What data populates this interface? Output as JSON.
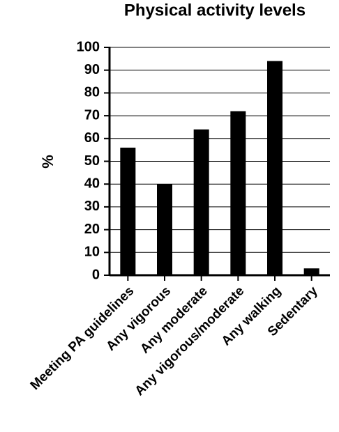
{
  "chart_data": {
    "type": "bar",
    "title": "Physical activity levels",
    "y_label": "%",
    "categories": [
      "Meeting PA guidelines",
      "Any vigorous",
      "Any moderate",
      "Any vigorous/moderate",
      "Any walking",
      "Sedentary"
    ],
    "values": [
      56,
      40,
      64,
      72,
      94,
      3
    ],
    "color": "#000000",
    "ylim": [
      0,
      100
    ],
    "yticks": [
      0,
      10,
      20,
      30,
      40,
      50,
      60,
      70,
      80,
      90,
      100
    ],
    "grid": true
  }
}
